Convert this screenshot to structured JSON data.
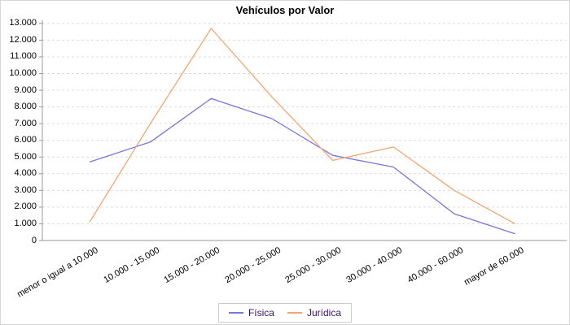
{
  "title": "Vehículos por Valor",
  "colors": {
    "fisica_line": "#7777dd",
    "juridica_line": "#f5a572",
    "grid_line": "#dcdcdc",
    "axis_line": "#999999",
    "tick_text": "#000000",
    "legend_text": "#3d1166",
    "legend_border": "#cccccc",
    "title_text": "#000000"
  },
  "legend": {
    "items": [
      {
        "label": "Física"
      },
      {
        "label": "Jurídica"
      }
    ]
  },
  "chart_data": {
    "type": "line",
    "title": "Vehículos por Valor",
    "categories": [
      "menor o igual a 10.000",
      "10.000 - 15.000",
      "15.000 - 20.000",
      "20.000 - 25.000",
      "25.000 - 30.000",
      "30.000 - 40.000",
      "40.000 - 60.000",
      "mayor de 60.000"
    ],
    "series": [
      {
        "name": "Física",
        "color": "#7777dd",
        "values": [
          4700,
          5900,
          8500,
          7300,
          5100,
          4400,
          1600,
          400
        ]
      },
      {
        "name": "Jurídica",
        "color": "#f5a572",
        "values": [
          1100,
          7000,
          12700,
          8600,
          4800,
          5600,
          3000,
          1000
        ]
      }
    ],
    "ylim": [
      0,
      13000
    ],
    "ytick_step": 1000,
    "ytick_labels": [
      "0",
      "1.000",
      "2.000",
      "3.000",
      "4.000",
      "5.000",
      "6.000",
      "7.000",
      "8.000",
      "9.000",
      "10.000",
      "11.000",
      "12.000",
      "13.000"
    ],
    "grid": "horizontal-dashed",
    "legend_position": "bottom",
    "xlabel": "",
    "ylabel": ""
  }
}
